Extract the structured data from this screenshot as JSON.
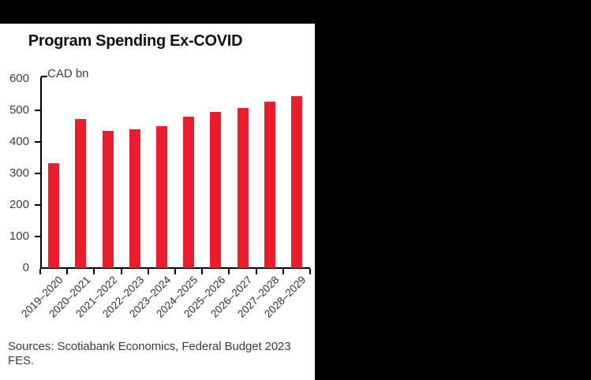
{
  "window": {
    "background_color": "#000000",
    "panel_color": "#ffffff"
  },
  "chart_data": {
    "type": "bar",
    "title": "Program Spending Ex-COVID",
    "unit_label": "CAD bn",
    "categories": [
      "2019–2020",
      "2020–2021",
      "2021–2022",
      "2022–2023",
      "2023–2024",
      "2024–2025",
      "2025–2026",
      "2026–2027",
      "2027–2028",
      "2028–2029"
    ],
    "values": [
      332,
      473,
      435,
      440,
      450,
      481,
      494,
      508,
      527,
      545
    ],
    "ylim": [
      0,
      600
    ],
    "yticks": [
      0,
      100,
      200,
      300,
      400,
      500,
      600
    ],
    "grid": "off",
    "legend": "none",
    "bar_color": "#EB1C2D",
    "axis_color": "#000000",
    "label_color": "#3c3c3c",
    "sources": "Sources: Scotiabank Economics, Federal Budget 2023 FES."
  }
}
